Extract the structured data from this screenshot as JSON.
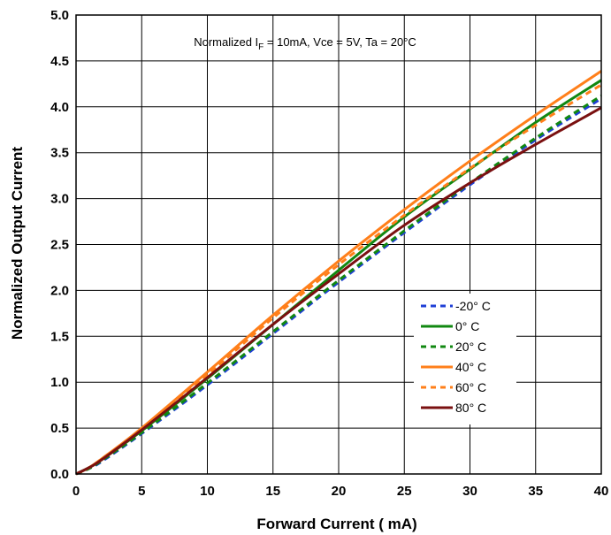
{
  "chart_data": {
    "type": "line",
    "xlabel": "Forward Current ( mA)",
    "ylabel": "Normalized Output Current",
    "xlim": [
      0,
      40
    ],
    "ylim": [
      0,
      5.0
    ],
    "xticks": [
      "0",
      "5",
      "10",
      "15",
      "20",
      "25",
      "30",
      "35",
      "40"
    ],
    "yticks": [
      "0.0",
      "0.5",
      "1.0",
      "1.5",
      "2.0",
      "2.5",
      "3.0",
      "3.5",
      "4.0",
      "4.5",
      "5.0"
    ],
    "grid": true,
    "legend_position": "lower-right",
    "annotation": {
      "prefix": "Normalized I",
      "subscript": "F",
      "suffix": " = 10mA, Vce = 5V, Ta = 20°C"
    },
    "series": [
      {
        "name": "-20° C",
        "color": "#1f3fd6",
        "dash": "dashed",
        "x": [
          0,
          1,
          2,
          5,
          10,
          15,
          20,
          25,
          30,
          35,
          40
        ],
        "y": [
          0,
          0.06,
          0.14,
          0.44,
          0.97,
          1.53,
          2.09,
          2.63,
          3.15,
          3.64,
          4.09
        ]
      },
      {
        "name": "0° C",
        "color": "#118811",
        "dash": "solid",
        "x": [
          0,
          1,
          2,
          5,
          10,
          15,
          20,
          25,
          30,
          35,
          40
        ],
        "y": [
          0,
          0.07,
          0.16,
          0.47,
          1.04,
          1.63,
          2.22,
          2.8,
          3.32,
          3.83,
          4.29
        ]
      },
      {
        "name": "20° C",
        "color": "#118811",
        "dash": "dashed",
        "x": [
          0,
          1,
          2,
          5,
          10,
          15,
          20,
          25,
          30,
          35,
          40
        ],
        "y": [
          0,
          0.06,
          0.15,
          0.45,
          0.99,
          1.55,
          2.11,
          2.65,
          3.17,
          3.66,
          4.12
        ]
      },
      {
        "name": "40° C",
        "color": "#ff7f1a",
        "dash": "solid",
        "x": [
          0,
          1,
          2,
          5,
          10,
          15,
          20,
          25,
          30,
          35,
          40
        ],
        "y": [
          0,
          0.07,
          0.17,
          0.5,
          1.11,
          1.73,
          2.32,
          2.88,
          3.41,
          3.91,
          4.39
        ]
      },
      {
        "name": "60° C",
        "color": "#ff7f1a",
        "dash": "dashed",
        "x": [
          0,
          1,
          2,
          5,
          10,
          15,
          20,
          25,
          30,
          35,
          40
        ],
        "y": [
          0,
          0.07,
          0.17,
          0.49,
          1.08,
          1.7,
          2.28,
          2.82,
          3.33,
          3.8,
          4.24
        ]
      },
      {
        "name": "80° C",
        "color": "#7a1010",
        "dash": "solid",
        "x": [
          0,
          1,
          2,
          5,
          10,
          15,
          20,
          25,
          30,
          35,
          40
        ],
        "y": [
          0,
          0.07,
          0.16,
          0.48,
          1.05,
          1.63,
          2.18,
          2.71,
          3.17,
          3.59,
          3.99
        ]
      }
    ]
  }
}
